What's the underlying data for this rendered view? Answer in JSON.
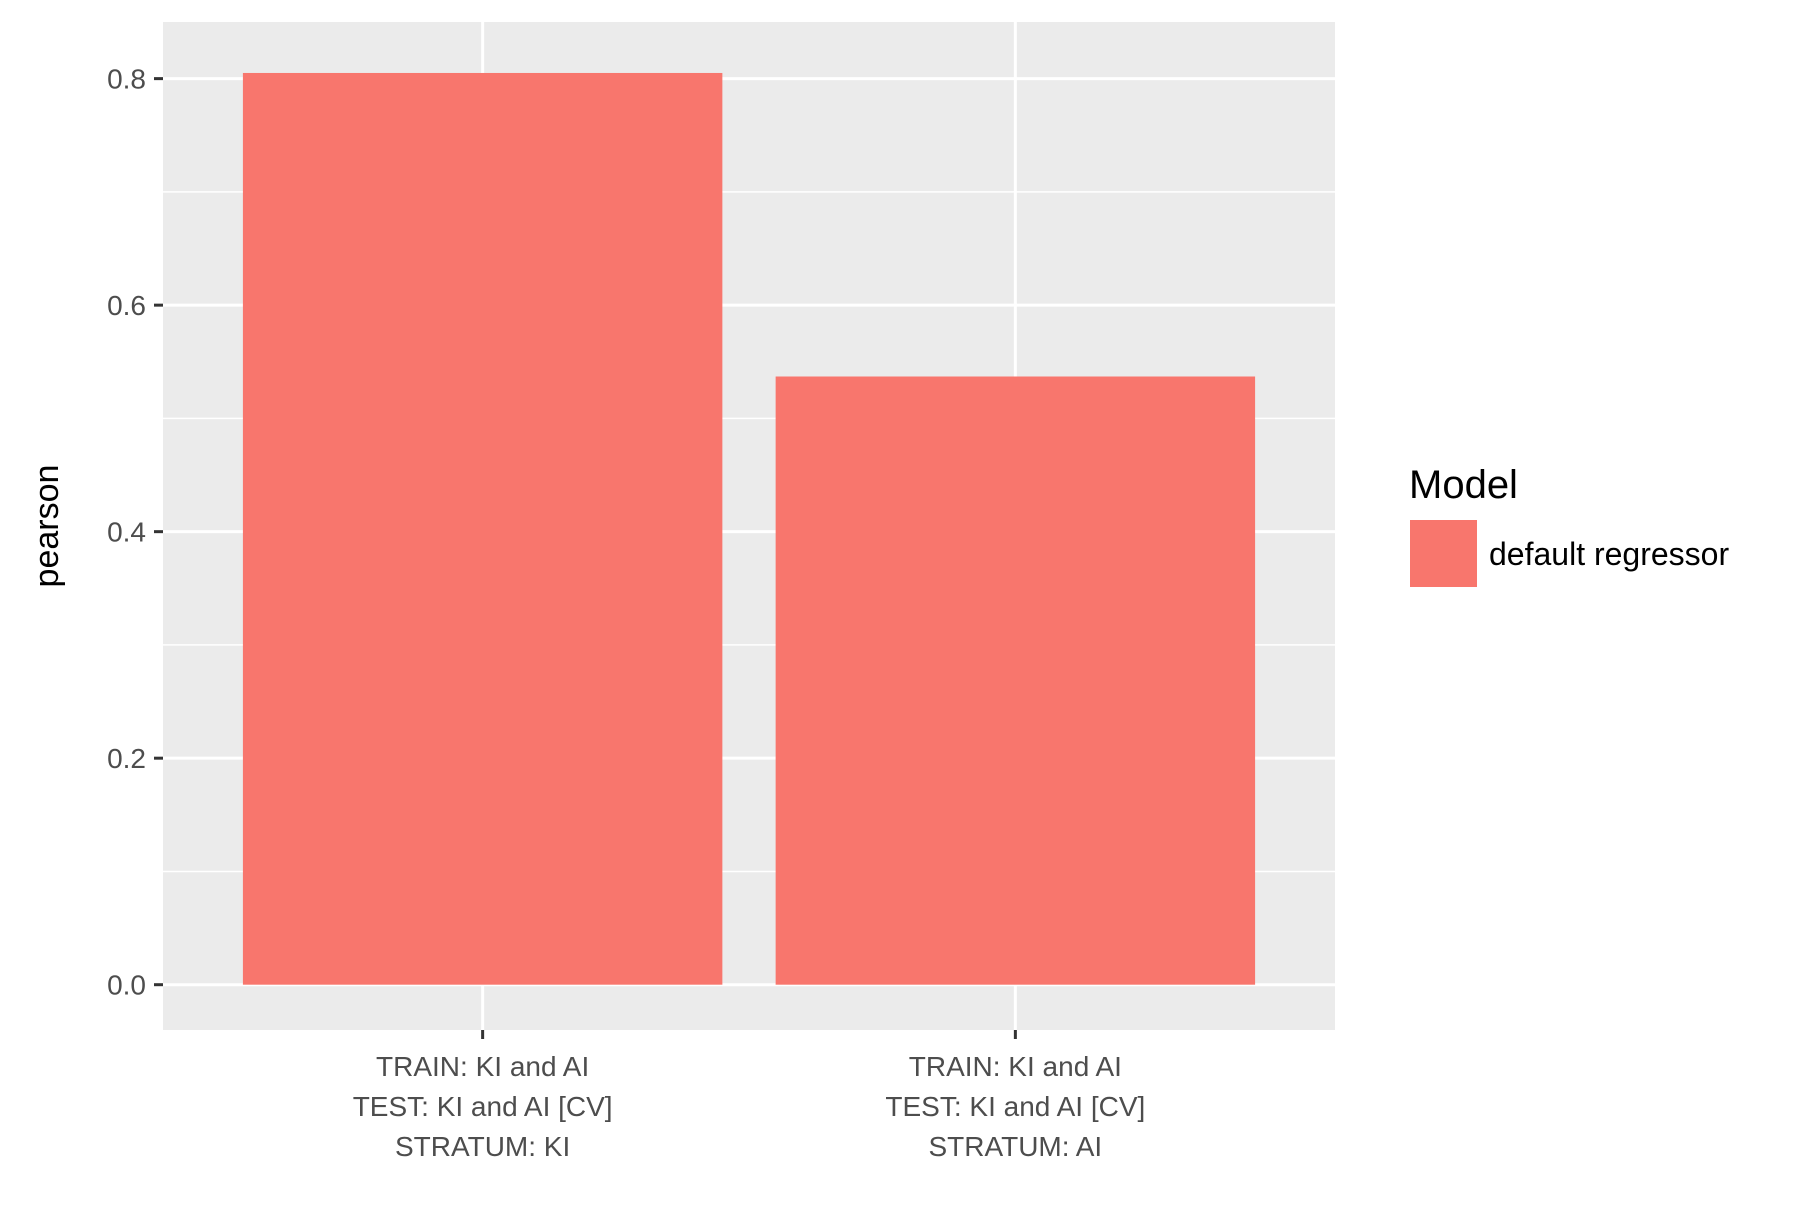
{
  "chart_data": {
    "type": "bar",
    "categories": [
      [
        "TRAIN: KI and AI",
        "TEST: KI and AI [CV]",
        "STRATUM: KI"
      ],
      [
        "TRAIN: KI and AI",
        "TEST: KI and AI [CV]",
        "STRATUM: AI"
      ]
    ],
    "series": [
      {
        "name": "default regressor",
        "values": [
          0.805,
          0.537
        ]
      }
    ],
    "xlabel": "",
    "ylabel": "pearson",
    "ylim": [
      -0.04,
      0.85
    ],
    "yticks": [
      0.0,
      0.2,
      0.4,
      0.6,
      0.8
    ],
    "ytick_labels": [
      "0.0",
      "0.2",
      "0.4",
      "0.6",
      "0.8"
    ],
    "grid": true,
    "legend": {
      "title": "Model",
      "position": "right"
    },
    "colors": {
      "bar": "#F8766D",
      "panel": "#EBEBEB",
      "grid": "#FFFFFF",
      "tick": "#333333"
    }
  }
}
